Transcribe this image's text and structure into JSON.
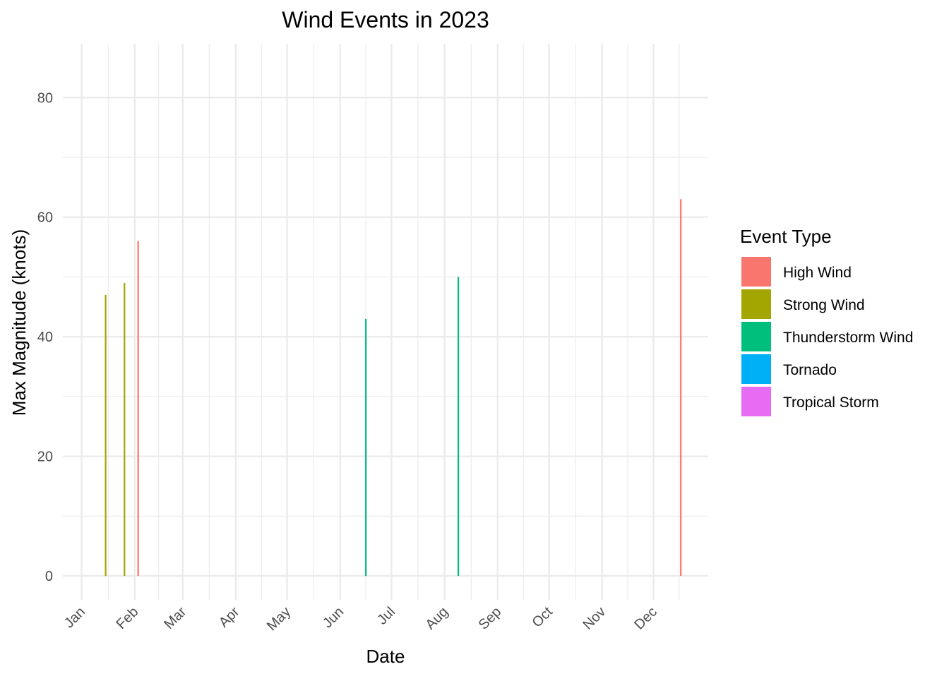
{
  "chart_data": {
    "type": "bar",
    "title": "Wind Events in 2023",
    "xlabel": "Date",
    "ylabel": "Max Magnitude (knots)",
    "x_axis": {
      "type": "date",
      "range": [
        "2022-12-21",
        "2024-01-02"
      ],
      "tick_labels": [
        "Jan",
        "Feb",
        "Mar",
        "Apr",
        "May",
        "Jun",
        "Jul",
        "Aug",
        "Sep",
        "Oct",
        "Nov",
        "Dec"
      ],
      "tick_dates": [
        "2023-01-01",
        "2023-02-01",
        "2023-03-01",
        "2023-04-01",
        "2023-05-01",
        "2023-06-01",
        "2023-07-01",
        "2023-08-01",
        "2023-09-01",
        "2023-10-01",
        "2023-11-01",
        "2023-12-01"
      ],
      "tick_label_rotation": 45
    },
    "y_axis": {
      "range": [
        -4,
        89
      ],
      "ticks": [
        0,
        20,
        40,
        60,
        80
      ]
    },
    "grid": true,
    "legend": {
      "title": "Event Type",
      "placement": "right",
      "entries": [
        {
          "label": "High Wind",
          "color": "#F8766D"
        },
        {
          "label": "Strong Wind",
          "color": "#A3A500"
        },
        {
          "label": "Thunderstorm Wind",
          "color": "#00BF7D"
        },
        {
          "label": "Tornado",
          "color": "#00B0F6"
        },
        {
          "label": "Tropical Storm",
          "color": "#E76BF3"
        }
      ]
    },
    "series": [
      {
        "name": "High Wind",
        "color": "#F8766D",
        "points": [
          {
            "x": "2023-02-03",
            "y": 56
          },
          {
            "x": "2023-12-17",
            "y": 63
          }
        ]
      },
      {
        "name": "Strong Wind",
        "color": "#A3A500",
        "points": [
          {
            "x": "2023-01-15",
            "y": 47
          },
          {
            "x": "2023-01-26",
            "y": 49
          }
        ]
      },
      {
        "name": "Thunderstorm Wind",
        "color": "#00BF7D",
        "points": [
          {
            "x": "2023-06-16",
            "y": 43
          },
          {
            "x": "2023-08-09",
            "y": 50
          }
        ]
      },
      {
        "name": "Tornado",
        "color": "#00B0F6",
        "points": []
      },
      {
        "name": "Tropical Storm",
        "color": "#E76BF3",
        "points": []
      }
    ]
  }
}
